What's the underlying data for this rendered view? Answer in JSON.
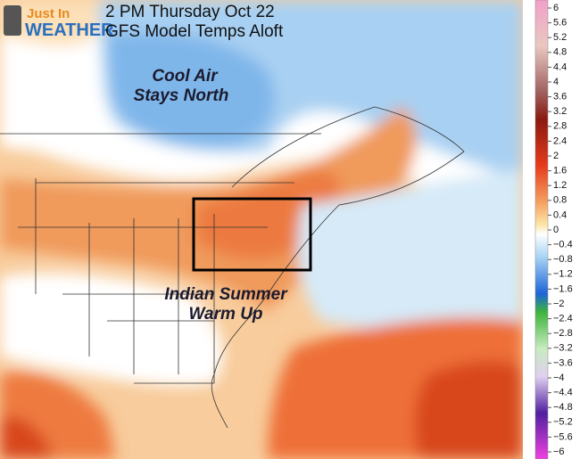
{
  "logo": {
    "line1": "Just In",
    "line2": "WEATHER"
  },
  "header": {
    "line1": "2 PM Thursday Oct 22",
    "line2": "GFS Model Temps Aloft"
  },
  "annotations": [
    {
      "lines": [
        "Cool Air",
        "Stays North"
      ]
    },
    {
      "lines": [
        "Indian Summer",
        "Warm Up"
      ]
    }
  ],
  "legend": {
    "labels": [
      "6",
      "5.6",
      "5.2",
      "4.8",
      "4.4",
      "4",
      "3.6",
      "3.2",
      "2.8",
      "2.4",
      "2",
      "1.6",
      "1.2",
      "0.8",
      "0.4",
      "0",
      "−0.4",
      "−0.8",
      "−1.2",
      "−1.6",
      "−2",
      "−2.4",
      "−2.8",
      "−3.2",
      "−3.6",
      "−4",
      "−4.4",
      "−4.8",
      "−5.2",
      "−5.6",
      "−6"
    ]
  }
}
